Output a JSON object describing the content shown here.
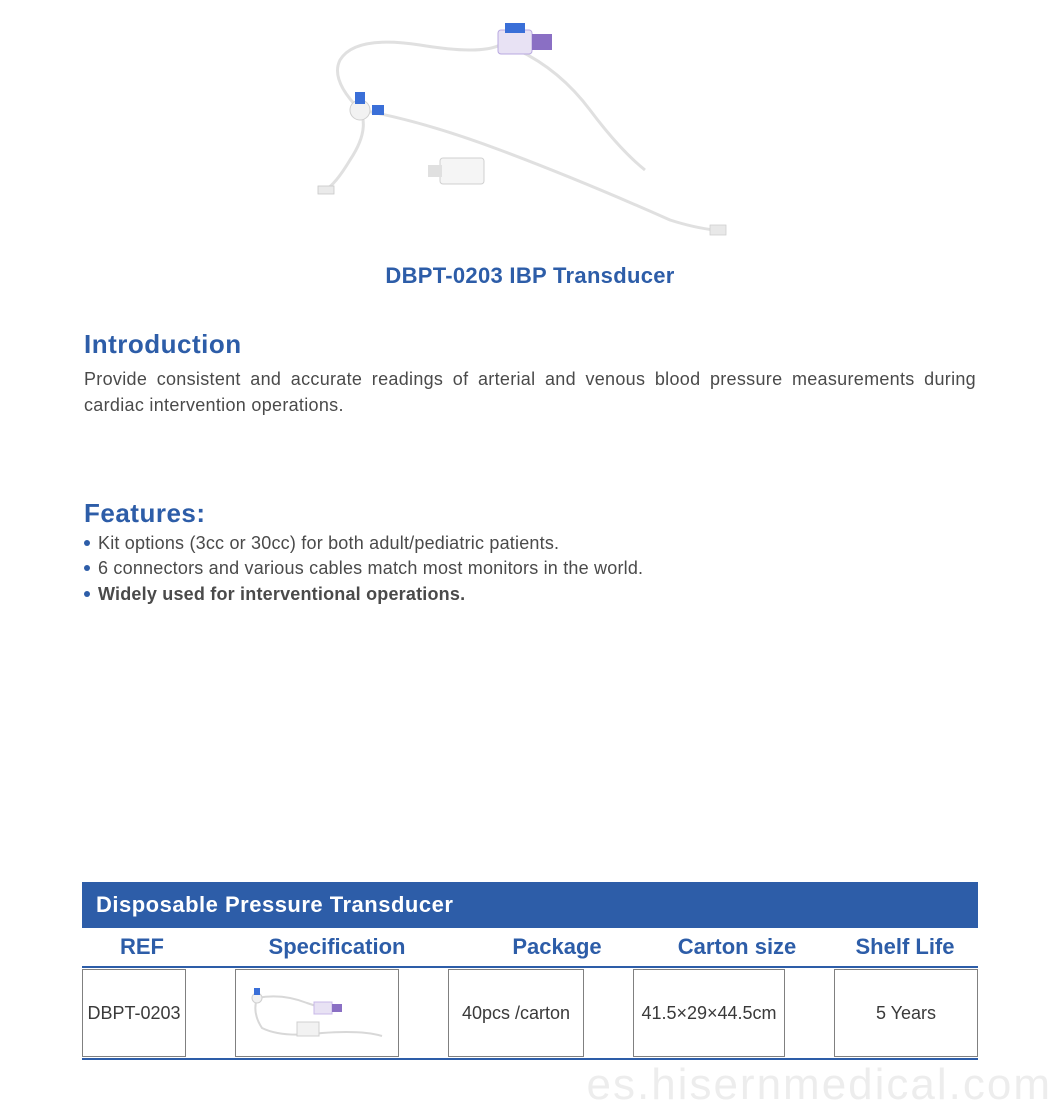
{
  "colors": {
    "heading_blue": "#2d5da8",
    "body_text": "#4a4a4a",
    "table_header_bg": "#2d5da8",
    "table_text": "#3a3a3a",
    "cell_border": "#808080",
    "row_divider": "#2d5da8",
    "bullet": "#2d5da8",
    "watermark": "#d8d8d8",
    "tube_light": "#e8e8e8",
    "tube_mid": "#d0d0d0",
    "device_purple": "#8a6fc4",
    "device_blue": "#3a6fd8",
    "device_white": "#f2f2f2"
  },
  "product": {
    "title": "DBPT-0203 IBP Transducer"
  },
  "introduction": {
    "heading": "Introduction",
    "text": "Provide consistent and accurate readings of arterial and venous blood pressure measurements during cardiac intervention operations."
  },
  "features": {
    "heading": "Features:",
    "items": [
      {
        "text": "Kit options (3cc or 30cc) for both adult/pediatric patients.",
        "bold": false
      },
      {
        "text": "6 connectors and various cables match most monitors in the world.",
        "bold": false
      },
      {
        "text": "Widely used for interventional operations.",
        "bold": true
      }
    ]
  },
  "table": {
    "title": "Disposable Pressure Transducer",
    "headers": [
      "REF",
      "Specification",
      "Package",
      "Carton  size",
      "Shelf Life"
    ],
    "row": {
      "ref": "DBPT-0203",
      "package": "40pcs /carton",
      "carton_size": "41.5×29×44.5cm",
      "shelf_life": "5 Years"
    }
  },
  "watermark": "es.hisernmedical.com"
}
